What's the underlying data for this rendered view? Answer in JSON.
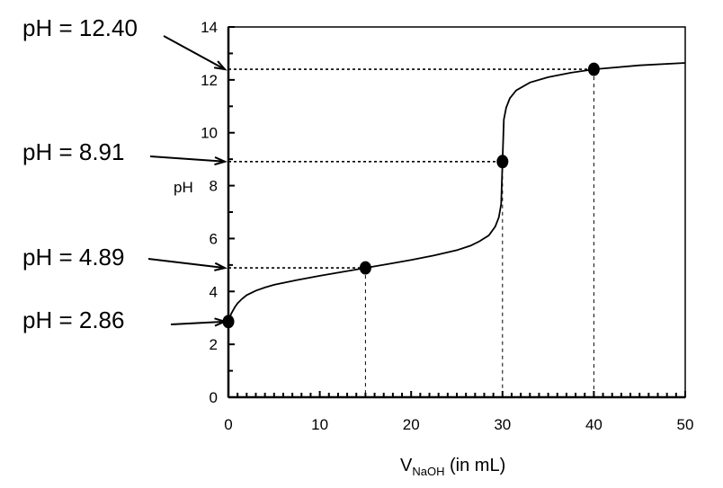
{
  "chart_data": {
    "type": "line",
    "xlabel_main": "V",
    "xlabel_sub": "NaOH",
    "xlabel_unit": " (in mL)",
    "ylabel": "pH",
    "xlim": [
      0,
      50
    ],
    "ylim": [
      0,
      14
    ],
    "x_ticks": [
      "0",
      "10",
      "20",
      "30",
      "40",
      "50"
    ],
    "y_ticks": [
      "0",
      "2",
      "4",
      "6",
      "8",
      "10",
      "12",
      "14"
    ],
    "x_minor_step": 1,
    "y_minor_step": 1,
    "grid": false,
    "curve": {
      "x": [
        0,
        0.3,
        0.7,
        1,
        1.5,
        2,
        3,
        4,
        5,
        7.5,
        10,
        12.5,
        15,
        17.5,
        20,
        22.5,
        25,
        26.5,
        27.5,
        28.5,
        29.2,
        29.6,
        29.85,
        30,
        30.15,
        30.4,
        30.8,
        31.5,
        33,
        35,
        37.5,
        40,
        45,
        50
      ],
      "y": [
        2.86,
        3.15,
        3.4,
        3.55,
        3.72,
        3.86,
        4.03,
        4.15,
        4.25,
        4.43,
        4.59,
        4.74,
        4.89,
        5.04,
        5.19,
        5.36,
        5.56,
        5.73,
        5.9,
        6.12,
        6.45,
        6.8,
        7.3,
        8.91,
        10.5,
        10.95,
        11.3,
        11.6,
        11.9,
        12.1,
        12.27,
        12.4,
        12.55,
        12.64
      ]
    },
    "points": [
      {
        "x": 0,
        "y": 2.86,
        "label": "pH = 2.86"
      },
      {
        "x": 15,
        "y": 4.89,
        "label": "pH = 4.89"
      },
      {
        "x": 30,
        "y": 8.91,
        "label": "pH = 8.91"
      },
      {
        "x": 40,
        "y": 12.4,
        "label": "pH = 12.40"
      }
    ],
    "line_color": "#000000",
    "marker_color": "#000000"
  }
}
